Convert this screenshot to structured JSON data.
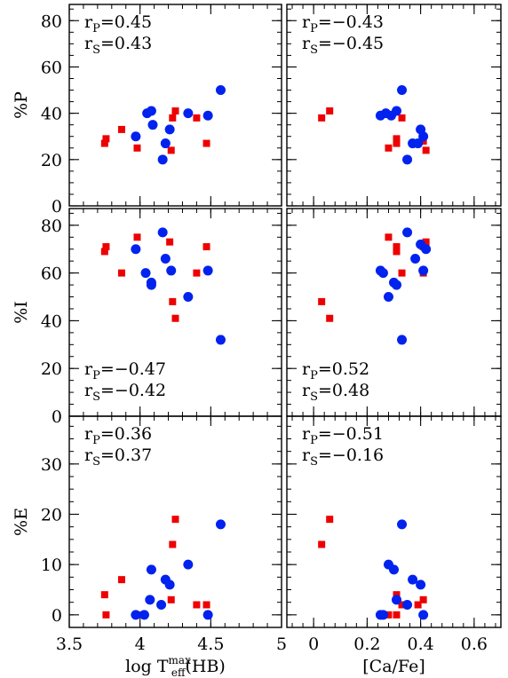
{
  "colors": {
    "series_square": "#ee0000",
    "series_circle": "#0022ee",
    "axes": "#000000"
  },
  "chart_data": [
    {
      "id": "P-vs-logT",
      "type": "scatter",
      "ylabel": "%P",
      "xlabel": "",
      "xlim": [
        3.5,
        5.0
      ],
      "ylim": [
        0,
        87
      ],
      "yticks": [
        0,
        20,
        40,
        60,
        80
      ],
      "xticks": [
        3.5,
        4.0,
        4.5,
        5.0
      ],
      "show_xtick_labels": false,
      "annotations": {
        "pos": "top",
        "rp": "0.45",
        "rs": "0.43"
      },
      "series": [
        {
          "marker": "square",
          "color": "#ee0000",
          "points": [
            [
              3.75,
              27
            ],
            [
              3.76,
              29
            ],
            [
              3.87,
              33
            ],
            [
              3.98,
              25
            ],
            [
              4.22,
              24
            ],
            [
              4.23,
              38
            ],
            [
              4.25,
              41
            ],
            [
              4.4,
              38
            ],
            [
              4.47,
              27
            ]
          ]
        },
        {
          "marker": "circle",
          "color": "#0022ee",
          "points": [
            [
              3.97,
              30
            ],
            [
              4.05,
              40
            ],
            [
              4.08,
              41
            ],
            [
              4.09,
              35
            ],
            [
              4.16,
              20
            ],
            [
              4.18,
              27
            ],
            [
              4.21,
              33
            ],
            [
              4.34,
              40
            ],
            [
              4.48,
              39
            ],
            [
              4.57,
              50
            ]
          ]
        }
      ]
    },
    {
      "id": "P-vs-CaFe",
      "type": "scatter",
      "ylabel": "",
      "xlabel": "",
      "xlim": [
        -0.1,
        0.7
      ],
      "ylim": [
        0,
        87
      ],
      "yticks": [
        0,
        20,
        40,
        60,
        80
      ],
      "xticks": [
        0.0,
        0.2,
        0.4,
        0.6
      ],
      "show_xtick_labels": false,
      "annotations": {
        "pos": "top",
        "rp": "−0.43",
        "rs": "−0.45"
      },
      "series": [
        {
          "marker": "square",
          "color": "#ee0000",
          "points": [
            [
              0.03,
              38
            ],
            [
              0.06,
              41
            ],
            [
              0.28,
              25
            ],
            [
              0.31,
              27
            ],
            [
              0.31,
              29
            ],
            [
              0.33,
              38
            ],
            [
              0.41,
              28
            ],
            [
              0.42,
              24
            ]
          ]
        },
        {
          "marker": "circle",
          "color": "#0022ee",
          "points": [
            [
              0.25,
              39
            ],
            [
              0.27,
              40
            ],
            [
              0.29,
              39
            ],
            [
              0.31,
              41
            ],
            [
              0.33,
              50
            ],
            [
              0.35,
              20
            ],
            [
              0.37,
              27
            ],
            [
              0.4,
              33
            ],
            [
              0.41,
              30
            ],
            [
              0.39,
              27
            ]
          ]
        }
      ]
    },
    {
      "id": "I-vs-logT",
      "type": "scatter",
      "ylabel": "%I",
      "xlabel": "",
      "xlim": [
        3.5,
        5.0
      ],
      "ylim": [
        0,
        87
      ],
      "yticks": [
        0,
        20,
        40,
        60,
        80
      ],
      "xticks": [
        3.5,
        4.0,
        4.5,
        5.0
      ],
      "show_xtick_labels": false,
      "annotations": {
        "pos": "bottom",
        "rp": "−0.47",
        "rs": "−0.42"
      },
      "series": [
        {
          "marker": "square",
          "color": "#ee0000",
          "points": [
            [
              3.75,
              69
            ],
            [
              3.76,
              71
            ],
            [
              3.87,
              60
            ],
            [
              3.98,
              75
            ],
            [
              4.21,
              73
            ],
            [
              4.23,
              48
            ],
            [
              4.25,
              41
            ],
            [
              4.4,
              60
            ],
            [
              4.47,
              71
            ]
          ]
        },
        {
          "marker": "circle",
          "color": "#0022ee",
          "points": [
            [
              3.97,
              70
            ],
            [
              4.04,
              60
            ],
            [
              4.08,
              56
            ],
            [
              4.08,
              55
            ],
            [
              4.16,
              77
            ],
            [
              4.18,
              66
            ],
            [
              4.22,
              61
            ],
            [
              4.34,
              50
            ],
            [
              4.48,
              61
            ],
            [
              4.57,
              32
            ]
          ]
        }
      ]
    },
    {
      "id": "I-vs-CaFe",
      "type": "scatter",
      "ylabel": "",
      "xlabel": "",
      "xlim": [
        -0.1,
        0.7
      ],
      "ylim": [
        0,
        87
      ],
      "yticks": [
        0,
        20,
        40,
        60,
        80
      ],
      "xticks": [
        0.0,
        0.2,
        0.4,
        0.6
      ],
      "show_xtick_labels": false,
      "annotations": {
        "pos": "bottom",
        "rp": "0.52",
        "rs": "0.48"
      },
      "series": [
        {
          "marker": "square",
          "color": "#ee0000",
          "points": [
            [
              0.03,
              48
            ],
            [
              0.06,
              41
            ],
            [
              0.28,
              75
            ],
            [
              0.31,
              69
            ],
            [
              0.31,
              71
            ],
            [
              0.33,
              60
            ],
            [
              0.41,
              60
            ],
            [
              0.41,
              71
            ],
            [
              0.42,
              73
            ]
          ]
        },
        {
          "marker": "circle",
          "color": "#0022ee",
          "points": [
            [
              0.25,
              61
            ],
            [
              0.26,
              60
            ],
            [
              0.28,
              50
            ],
            [
              0.3,
              56
            ],
            [
              0.31,
              55
            ],
            [
              0.33,
              32
            ],
            [
              0.35,
              77
            ],
            [
              0.38,
              66
            ],
            [
              0.4,
              72
            ],
            [
              0.41,
              61
            ],
            [
              0.42,
              70
            ]
          ]
        }
      ]
    },
    {
      "id": "E-vs-logT",
      "type": "scatter",
      "ylabel": "%E",
      "xlabel": "log T_eff^max(HB)",
      "xlim": [
        3.5,
        5.0
      ],
      "ylim": [
        -2.5,
        39.5
      ],
      "yticks": [
        0,
        10,
        20,
        30
      ],
      "xticks": [
        3.5,
        4.0,
        4.5,
        5.0
      ],
      "xtick_labels": [
        "3.5",
        "4",
        "4.5",
        "5"
      ],
      "show_xtick_labels": true,
      "annotations": {
        "pos": "top",
        "rp": "0.36",
        "rs": "0.37"
      },
      "series": [
        {
          "marker": "square",
          "color": "#ee0000",
          "points": [
            [
              3.75,
              4
            ],
            [
              3.76,
              0
            ],
            [
              3.87,
              7
            ],
            [
              3.98,
              0
            ],
            [
              4.22,
              3
            ],
            [
              4.23,
              14
            ],
            [
              4.25,
              19
            ],
            [
              4.4,
              2
            ],
            [
              4.47,
              2
            ]
          ]
        },
        {
          "marker": "circle",
          "color": "#0022ee",
          "points": [
            [
              3.97,
              0
            ],
            [
              4.03,
              0
            ],
            [
              4.07,
              3
            ],
            [
              4.08,
              9
            ],
            [
              4.15,
              2
            ],
            [
              4.18,
              7
            ],
            [
              4.21,
              6
            ],
            [
              4.34,
              10
            ],
            [
              4.48,
              0
            ],
            [
              4.57,
              18
            ]
          ]
        }
      ]
    },
    {
      "id": "E-vs-CaFe",
      "type": "scatter",
      "ylabel": "",
      "xlabel": "[Ca/Fe]",
      "xlim": [
        -0.1,
        0.7
      ],
      "ylim": [
        -2.5,
        39.5
      ],
      "yticks": [
        0,
        10,
        20,
        30
      ],
      "xticks": [
        0.0,
        0.2,
        0.4,
        0.6
      ],
      "xtick_labels": [
        "0",
        "0.2",
        "0.4",
        "0.6"
      ],
      "show_xtick_labels": true,
      "annotations": {
        "pos": "top",
        "rp": "−0.51",
        "rs": "−0.16"
      },
      "series": [
        {
          "marker": "square",
          "color": "#ee0000",
          "points": [
            [
              0.03,
              14
            ],
            [
              0.06,
              19
            ],
            [
              0.28,
              0
            ],
            [
              0.31,
              0
            ],
            [
              0.31,
              4
            ],
            [
              0.33,
              2
            ],
            [
              0.39,
              2
            ],
            [
              0.41,
              3
            ]
          ]
        },
        {
          "marker": "circle",
          "color": "#0022ee",
          "points": [
            [
              0.25,
              0
            ],
            [
              0.26,
              0
            ],
            [
              0.28,
              10
            ],
            [
              0.3,
              9
            ],
            [
              0.31,
              3
            ],
            [
              0.33,
              18
            ],
            [
              0.35,
              2
            ],
            [
              0.37,
              7
            ],
            [
              0.4,
              6
            ],
            [
              0.41,
              0
            ]
          ]
        }
      ]
    }
  ]
}
